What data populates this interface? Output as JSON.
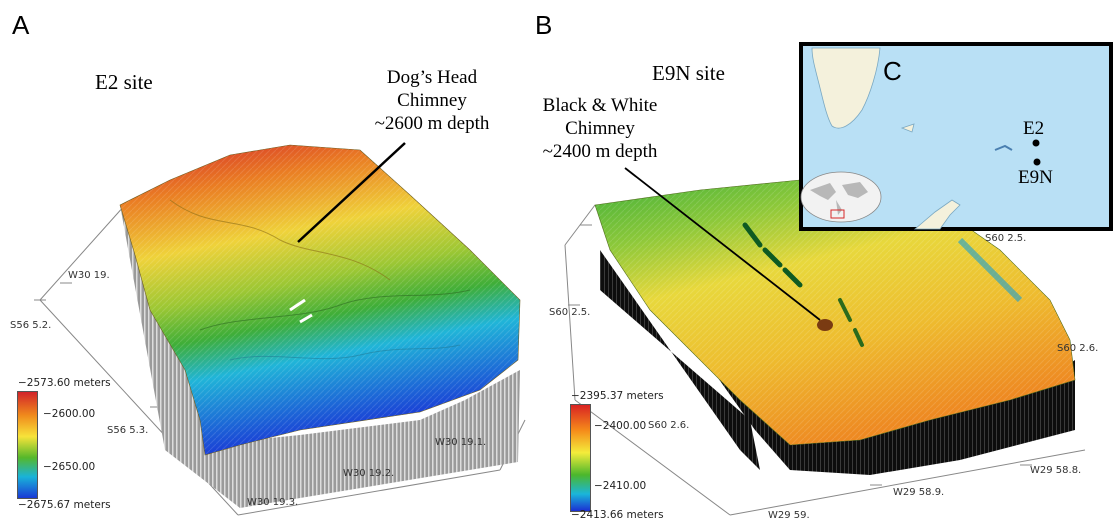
{
  "panels": {
    "a": {
      "letter": "A",
      "site_title": "E2 site",
      "annotation": [
        "Dog’s Head",
        "Chimney",
        "~2600 m depth"
      ],
      "axis_labels": [
        "W30 19.",
        "S56 5.2.",
        "S56 5.3.",
        "W30 19.1.",
        "W30 19.2.",
        "W30 19.3."
      ],
      "colorbar": {
        "top": "−2573.60 meters",
        "mid1": "−2600.00",
        "mid2": "−2650.00",
        "bottom": "−2675.67 meters"
      }
    },
    "b": {
      "letter": "B",
      "site_title": "E9N site",
      "annotation": [
        "Black & White",
        "Chimney",
        "~2400 m depth"
      ],
      "axis_labels": [
        "S60 2.5.",
        "S60 2.5.",
        "S60 2.6.",
        "S60 2.6.",
        "W29 58.8.",
        "W29 58.9.",
        "W29 59."
      ],
      "colorbar": {
        "top": "−2395.37 meters",
        "mid1": "−2400.00",
        "mid2": "−2410.00",
        "bottom": "−2413.66 meters"
      }
    },
    "c": {
      "letter": "C",
      "sites": [
        "E2",
        "E9N"
      ]
    }
  },
  "colors": {
    "ocean": "#b9e0f5",
    "land": "#f4f1dc",
    "high": "#d2232a",
    "mid": "#f7e33a",
    "low": "#1a3ad6"
  }
}
